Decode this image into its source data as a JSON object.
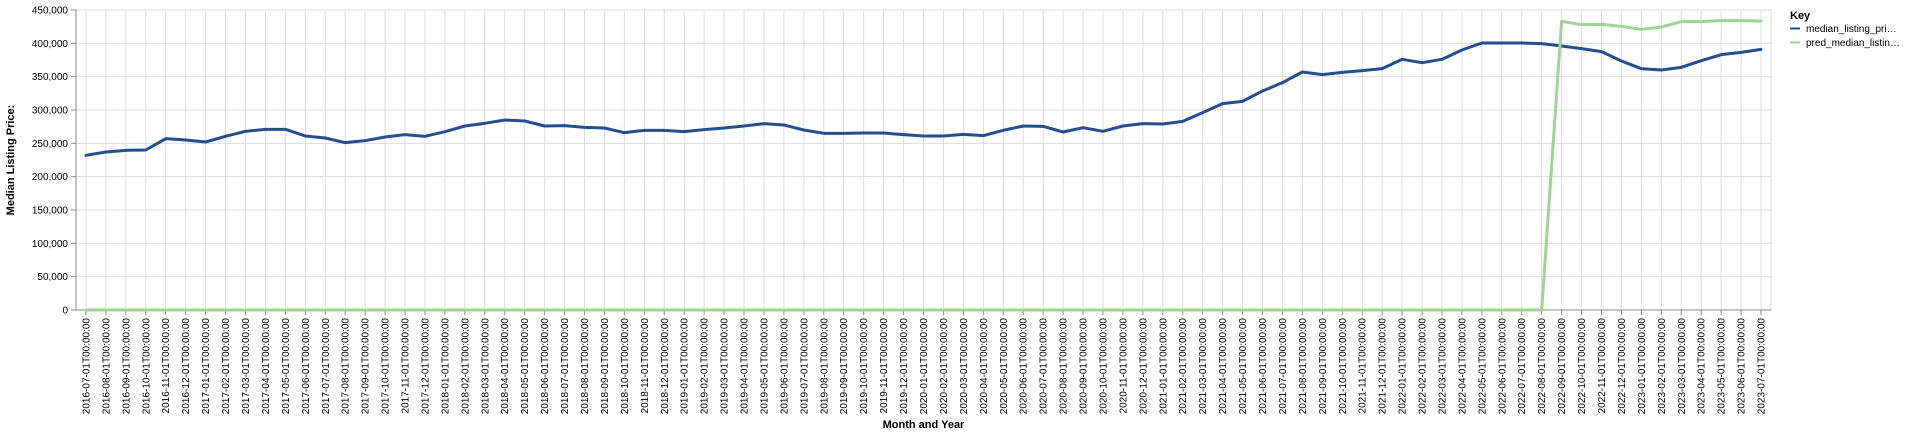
{
  "chart_data": {
    "type": "line",
    "xlabel": "Month and Year",
    "ylabel": "Median Listing Price:",
    "ylim": [
      0,
      450000
    ],
    "yticks": [
      0,
      50000,
      100000,
      150000,
      200000,
      250000,
      300000,
      350000,
      400000,
      450000
    ],
    "ytick_labels": [
      "0",
      "50,000",
      "100,000",
      "150,000",
      "200,000",
      "250,000",
      "300,000",
      "350,000",
      "400,000",
      "450,000"
    ],
    "grid": true,
    "legend": {
      "title": "Key",
      "placement": "right"
    },
    "x": [
      "2016-07-01T00:00:00",
      "2016-08-01T00:00:00",
      "2016-09-01T00:00:00",
      "2016-10-01T00:00:00",
      "2016-11-01T00:00:00",
      "2016-12-01T00:00:00",
      "2017-01-01T00:00:00",
      "2017-02-01T00:00:00",
      "2017-03-01T00:00:00",
      "2017-04-01T00:00:00",
      "2017-05-01T00:00:00",
      "2017-06-01T00:00:00",
      "2017-07-01T00:00:00",
      "2017-08-01T00:00:00",
      "2017-09-01T00:00:00",
      "2017-10-01T00:00:00",
      "2017-11-01T00:00:00",
      "2017-12-01T00:00:00",
      "2018-01-01T00:00:00",
      "2018-02-01T00:00:00",
      "2018-03-01T00:00:00",
      "2018-04-01T00:00:00",
      "2018-05-01T00:00:00",
      "2018-06-01T00:00:00",
      "2018-07-01T00:00:00",
      "2018-08-01T00:00:00",
      "2018-09-01T00:00:00",
      "2018-10-01T00:00:00",
      "2018-11-01T00:00:00",
      "2018-12-01T00:00:00",
      "2019-01-01T00:00:00",
      "2019-02-01T00:00:00",
      "2019-03-01T00:00:00",
      "2019-04-01T00:00:00",
      "2019-05-01T00:00:00",
      "2019-06-01T00:00:00",
      "2019-07-01T00:00:00",
      "2019-08-01T00:00:00",
      "2019-09-01T00:00:00",
      "2019-10-01T00:00:00",
      "2019-11-01T00:00:00",
      "2019-12-01T00:00:00",
      "2020-01-01T00:00:00",
      "2020-02-01T00:00:00",
      "2020-03-01T00:00:00",
      "2020-04-01T00:00:00",
      "2020-05-01T00:00:00",
      "2020-06-01T00:00:00",
      "2020-07-01T00:00:00",
      "2020-08-01T00:00:00",
      "2020-09-01T00:00:00",
      "2020-10-01T00:00:00",
      "2020-11-01T00:00:00",
      "2020-12-01T00:00:00",
      "2021-01-01T00:00:00",
      "2021-02-01T00:00:00",
      "2021-03-01T00:00:00",
      "2021-04-01T00:00:00",
      "2021-05-01T00:00:00",
      "2021-06-01T00:00:00",
      "2021-07-01T00:00:00",
      "2021-08-01T00:00:00",
      "2021-09-01T00:00:00",
      "2021-10-01T00:00:00",
      "2021-11-01T00:00:00",
      "2021-12-01T00:00:00",
      "2022-01-01T00:00:00",
      "2022-02-01T00:00:00",
      "2022-03-01T00:00:00",
      "2022-04-01T00:00:00",
      "2022-05-01T00:00:00",
      "2022-06-01T00:00:00",
      "2022-07-01T00:00:00",
      "2022-08-01T00:00:00",
      "2022-09-01T00:00:00",
      "2022-10-01T00:00:00",
      "2022-11-01T00:00:00",
      "2022-12-01T00:00:00",
      "2023-01-01T00:00:00",
      "2023-02-01T00:00:00",
      "2023-03-01T00:00:00",
      "2023-04-01T00:00:00",
      "2023-05-01T00:00:00",
      "2023-06-01T00:00:00",
      "2023-07-01T00:00:00"
    ],
    "series": [
      {
        "name": "median_listing_pri…",
        "color": "#1f4e9c",
        "values": [
          232000,
          237000,
          239500,
          240000,
          257000,
          255000,
          252000,
          260500,
          268000,
          271000,
          271000,
          261000,
          258000,
          251000,
          254000,
          259500,
          263000,
          260500,
          267500,
          276000,
          280000,
          285000,
          283500,
          276000,
          276500,
          274000,
          273000,
          266000,
          269500,
          269500,
          267500,
          270500,
          273000,
          276000,
          279500,
          277500,
          270000,
          265000,
          265000,
          265500,
          265500,
          263000,
          261000,
          261000,
          263500,
          261500,
          269500,
          276000,
          275500,
          267000,
          273500,
          268000,
          276000,
          279500,
          279000,
          283000,
          296000,
          309500,
          313000,
          328500,
          341000,
          357000,
          353000,
          356500,
          359000,
          362000,
          376000,
          371000,
          376000,
          390000,
          400500,
          400500,
          400500,
          399500,
          396000,
          392000,
          387500,
          373500,
          362000,
          360000,
          364000,
          374000,
          383000,
          386500,
          391000
        ]
      },
      {
        "name": "pred_median_listin…",
        "color": "#98d88f",
        "values": [
          0,
          0,
          0,
          0,
          0,
          0,
          0,
          0,
          0,
          0,
          0,
          0,
          0,
          0,
          0,
          0,
          0,
          0,
          0,
          0,
          0,
          0,
          0,
          0,
          0,
          0,
          0,
          0,
          0,
          0,
          0,
          0,
          0,
          0,
          0,
          0,
          0,
          0,
          0,
          0,
          0,
          0,
          0,
          0,
          0,
          0,
          0,
          0,
          0,
          0,
          0,
          0,
          0,
          0,
          0,
          0,
          0,
          0,
          0,
          0,
          0,
          0,
          0,
          0,
          0,
          0,
          0,
          0,
          0,
          0,
          0,
          0,
          0,
          0,
          433000,
          428000,
          428500,
          425500,
          421000,
          424500,
          432500,
          432500,
          434000,
          434000,
          433500
        ]
      }
    ]
  }
}
